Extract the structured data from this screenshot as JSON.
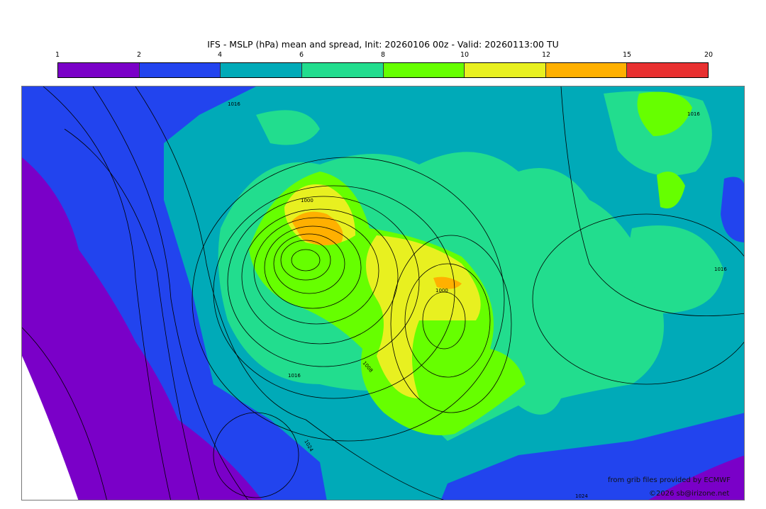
{
  "title": "IFS - MSLP (hPa) mean and spread, Init: 20260106 00z - Valid: 20260113:00 TU",
  "colorbar": {
    "ticks": [
      "1",
      "2",
      "4",
      "6",
      "8",
      "10",
      "12",
      "15",
      "20"
    ],
    "colors": [
      "#7a00c8",
      "#2244ee",
      "#00aab8",
      "#22dd8e",
      "#66ff00",
      "#e8f020",
      "#ffb000",
      "#e83030"
    ]
  },
  "isobar_labels": [
    "1000",
    "1000",
    "1016",
    "1016",
    "1016",
    "1016",
    "1008",
    "1024",
    "1024"
  ],
  "credits": {
    "source": "from grib files provided by ECMWF",
    "copyright": "©2026 sb@irizone.net"
  }
}
